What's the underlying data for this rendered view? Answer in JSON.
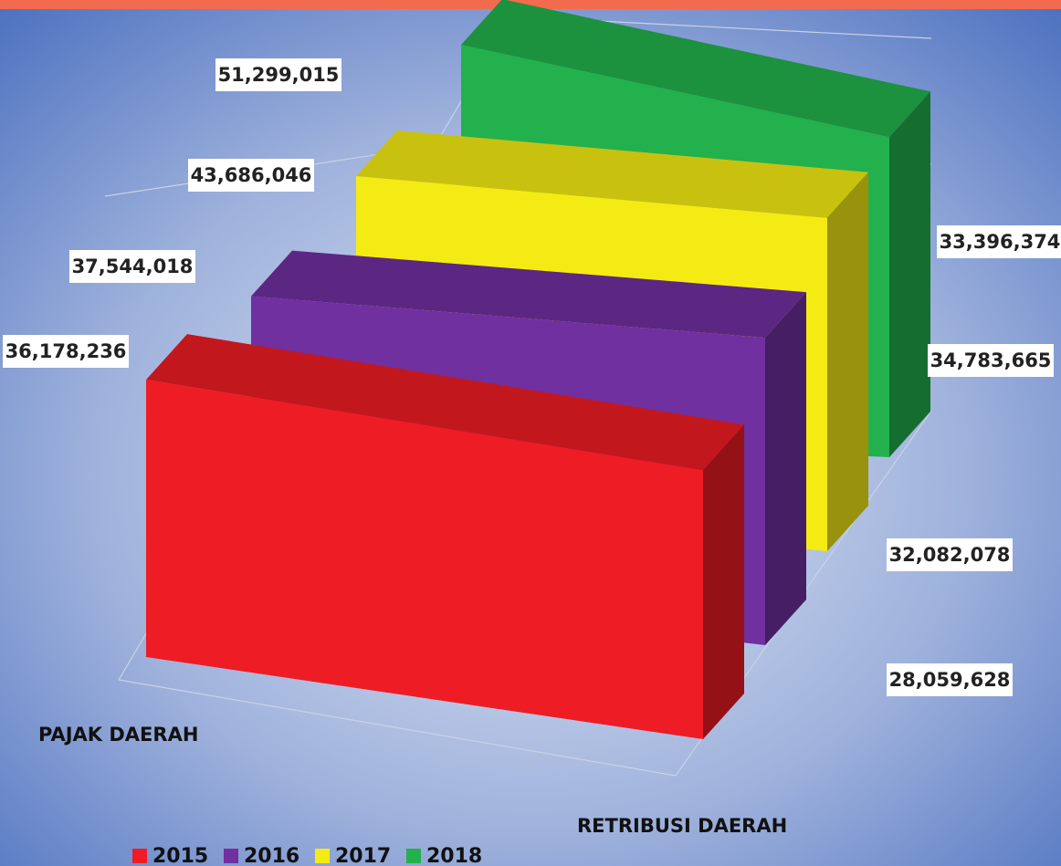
{
  "chart_data": {
    "type": "line",
    "categories": [
      "PAJAK DAERAH",
      "RETRIBUSI DAERAH"
    ],
    "series": [
      {
        "name": "2015",
        "color": "#ee1c24",
        "values": [
          36178236,
          28059628
        ],
        "value_labels": [
          "36,178,236",
          "28,059,628"
        ]
      },
      {
        "name": "2016",
        "color": "#7030a0",
        "values": [
          37544018,
          32082078
        ],
        "value_labels": [
          "37,544,018",
          "32,082,078"
        ]
      },
      {
        "name": "2017",
        "color": "#f5eb14",
        "values": [
          43686046,
          34783665
        ],
        "value_labels": [
          "43,686,046",
          "34,783,665"
        ]
      },
      {
        "name": "2018",
        "color": "#22b14c",
        "values": [
          51299015,
          33396374
        ],
        "value_labels": [
          "51,299,015",
          "33,396,374"
        ]
      }
    ]
  }
}
